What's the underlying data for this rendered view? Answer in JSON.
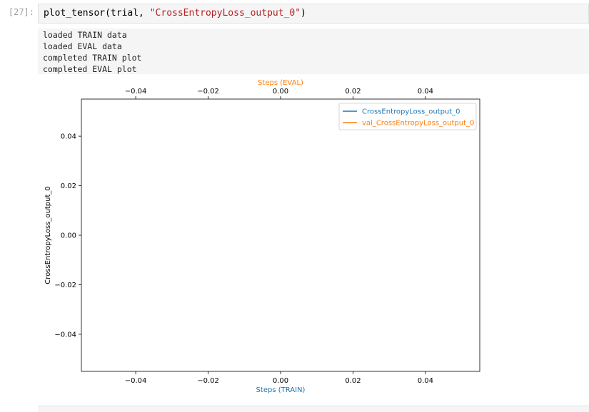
{
  "cell": {
    "prompt": "[27]:",
    "code_prefix": "plot_tensor(trial, ",
    "code_string": "\"CrossEntropyLoss_output_0\"",
    "code_suffix": ")"
  },
  "output": {
    "lines": [
      "loaded TRAIN data",
      "loaded EVAL data",
      "completed TRAIN plot",
      "completed EVAL plot"
    ]
  },
  "chart_data": {
    "type": "line",
    "title": "",
    "xlabel": "Steps (TRAIN)",
    "x2label": "Steps (EVAL)",
    "ylabel": "CrossEntropyLoss_output_0",
    "xlim": [
      -0.055,
      0.055
    ],
    "ylim": [
      -0.055,
      0.055
    ],
    "xticks": [
      -0.04,
      -0.02,
      0.0,
      0.02,
      0.04
    ],
    "x2ticks": [
      -0.04,
      -0.02,
      0.0,
      0.02,
      0.04
    ],
    "yticks": [
      0.04,
      0.02,
      0.0,
      -0.02,
      -0.04
    ],
    "xtick_labels": [
      "−0.04",
      "−0.02",
      "0.00",
      "0.02",
      "0.04"
    ],
    "x2tick_labels": [
      "−0.04",
      "−0.02",
      "0.00",
      "0.02",
      "0.04"
    ],
    "ytick_labels": [
      "0.04",
      "0.02",
      "0.00",
      "−0.02",
      "−0.04"
    ],
    "grid": false,
    "legend_position": "top-right",
    "series": [
      {
        "name": "CrossEntropyLoss_output_0",
        "color": "#1f77b4",
        "x": [],
        "y": []
      },
      {
        "name": "val_CrossEntropyLoss_output_0",
        "color": "#ff7f0e",
        "x": [],
        "y": []
      }
    ],
    "xlabel_color": "#1f77b4",
    "x2label_color": "#ff7f0e"
  }
}
